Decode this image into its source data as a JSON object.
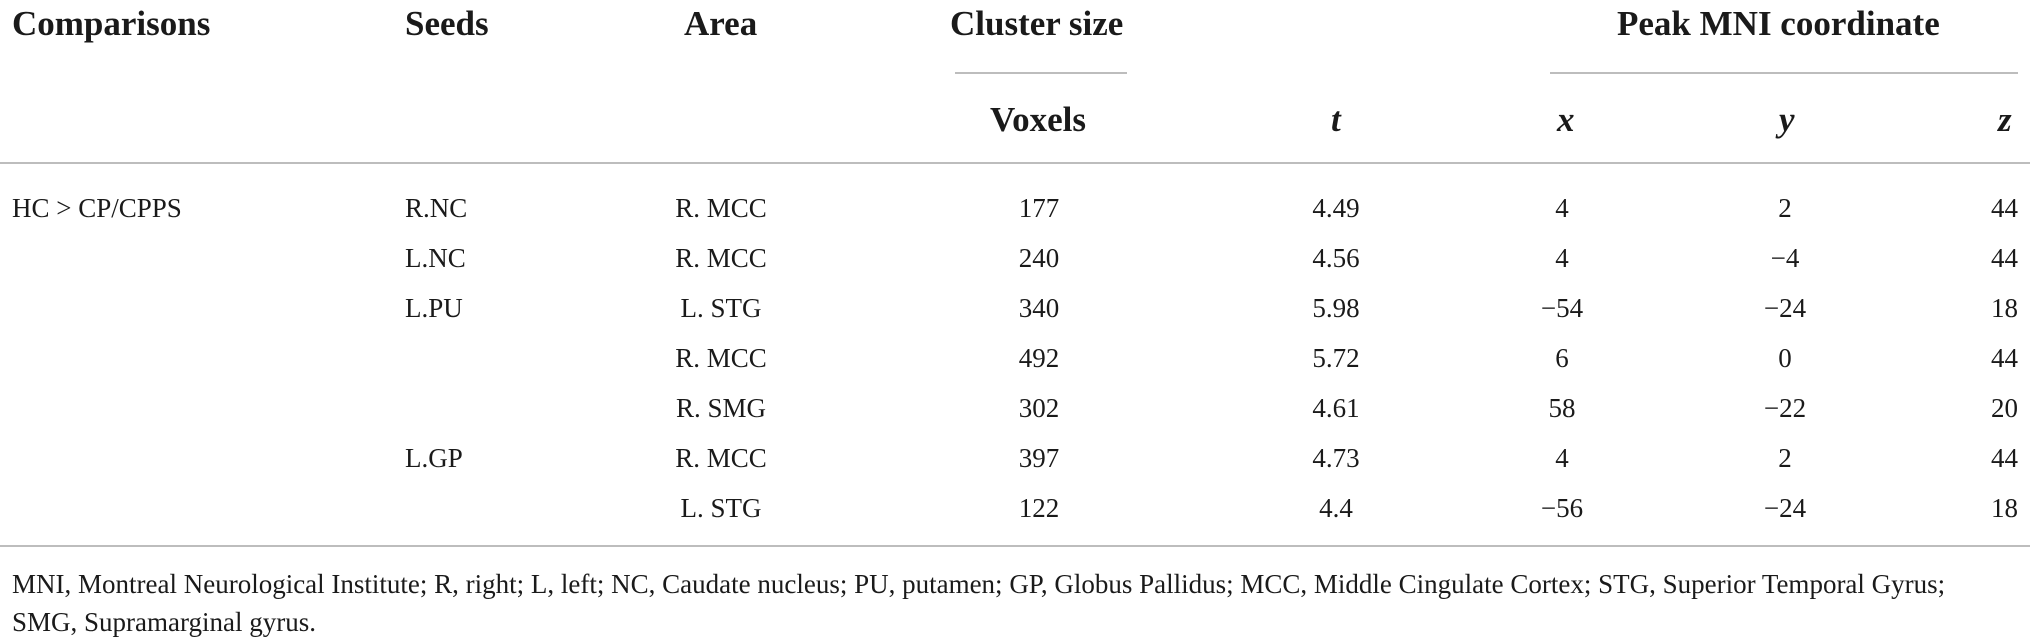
{
  "table": {
    "headers": {
      "comparisons": "Comparisons",
      "seeds": "Seeds",
      "area": "Area",
      "cluster_size": "Cluster size",
      "voxels": "Voxels",
      "t": "t",
      "peak_mni": "Peak MNI coordinate",
      "x": "x",
      "y": "y",
      "z": "z"
    },
    "rows": [
      {
        "comparison": "HC > CP/CPPS",
        "seed": "R.NC",
        "area": "R. MCC",
        "voxels": "177",
        "t": "4.49",
        "x": "4",
        "y": "2",
        "z": "44"
      },
      {
        "comparison": "",
        "seed": "L.NC",
        "area": "R. MCC",
        "voxels": "240",
        "t": "4.56",
        "x": "4",
        "y": "−4",
        "z": "44"
      },
      {
        "comparison": "",
        "seed": "L.PU",
        "area": "L. STG",
        "voxels": "340",
        "t": "5.98",
        "x": "−54",
        "y": "−24",
        "z": "18"
      },
      {
        "comparison": "",
        "seed": "",
        "area": "R. MCC",
        "voxels": "492",
        "t": "5.72",
        "x": "6",
        "y": "0",
        "z": "44"
      },
      {
        "comparison": "",
        "seed": "",
        "area": "R. SMG",
        "voxels": "302",
        "t": "4.61",
        "x": "58",
        "y": "−22",
        "z": "20"
      },
      {
        "comparison": "",
        "seed": "L.GP",
        "area": "R. MCC",
        "voxels": "397",
        "t": "4.73",
        "x": "4",
        "y": "2",
        "z": "44"
      },
      {
        "comparison": "",
        "seed": "",
        "area": "L. STG",
        "voxels": "122",
        "t": "4.4",
        "x": "−56",
        "y": "−24",
        "z": "18"
      }
    ],
    "footnote": "MNI, Montreal Neurological Institute; R, right; L, left; NC, Caudate nucleus; PU, putamen; GP, Globus Pallidus; MCC, Middle Cingulate Cortex; STG, Superior Temporal Gyrus; SMG, Supramarginal gyrus."
  }
}
